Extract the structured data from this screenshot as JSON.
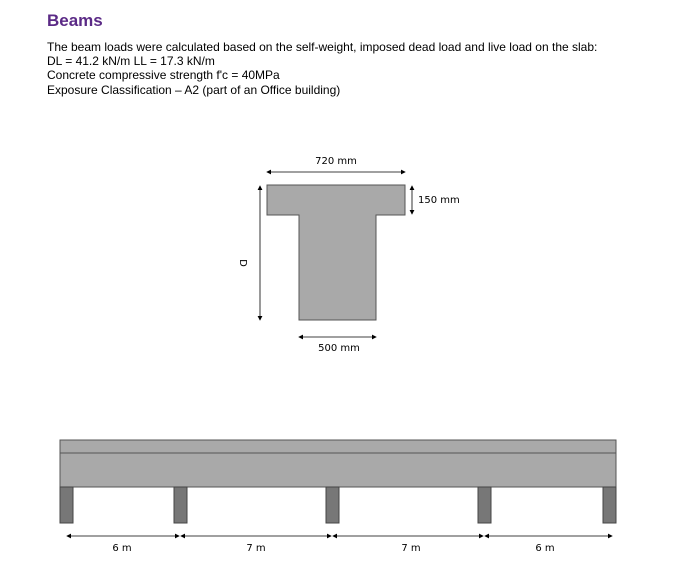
{
  "header": {
    "title": "Beams"
  },
  "paragraphs": [
    "The beam loads were calculated based on the self-weight, imposed dead load and live load on the slab:",
    "DL = 41.2 kN/m   LL = 17.3 kN/m",
    "Concrete compressive strength f'c = 40MPa",
    "Exposure Classification – A2 (part of an Office building)"
  ],
  "section": {
    "flange_width": "720 mm",
    "flange_depth": "150 mm",
    "depth": "D",
    "web_width": "500 mm"
  },
  "spans": [
    "6 m",
    "7 m",
    "7 m",
    "6 m"
  ]
}
